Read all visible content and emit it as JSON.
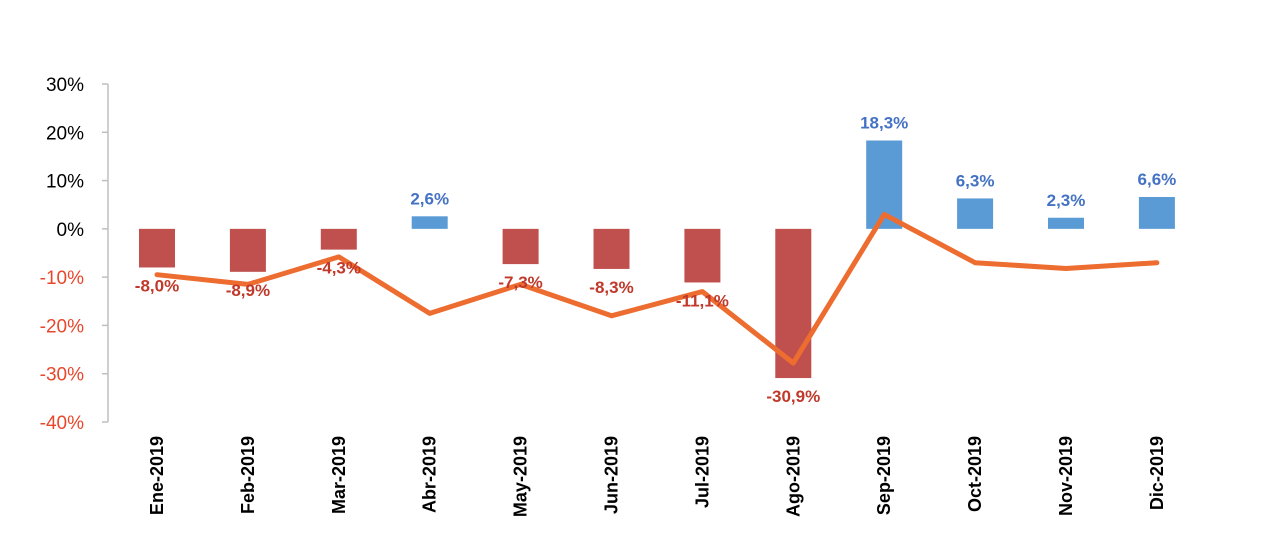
{
  "chart_data": {
    "type": "bar",
    "title": "",
    "xlabel": "",
    "ylabel": "",
    "ylim": [
      -40,
      30
    ],
    "yticks": [
      30,
      20,
      10,
      0,
      -10,
      -20,
      -30,
      -40
    ],
    "ytick_labels": [
      "30%",
      "20%",
      "10%",
      "0%",
      "-10%",
      "-20%",
      "-30%",
      "-40%"
    ],
    "categories": [
      "Ene-2019",
      "Feb-2019",
      "Mar-2019",
      "Abr-2019",
      "May-2019",
      "Jun-2019",
      "Jul-2019",
      "Ago-2019",
      "Sep-2019",
      "Oct-2019",
      "Nov-2019",
      "Dic-2019"
    ],
    "series": [
      {
        "name": "bars",
        "type": "bar",
        "values": [
          -8.0,
          -8.9,
          -4.3,
          2.6,
          -7.3,
          -8.3,
          -11.1,
          -30.9,
          18.3,
          6.3,
          2.3,
          6.6
        ],
        "labels": [
          "-8,0%",
          "-8,9%",
          "-4,3%",
          "2,6%",
          "-7,3%",
          "-8,3%",
          "-11,1%",
          "-30,9%",
          "18,3%",
          "6,3%",
          "2,3%",
          "6,6%"
        ]
      },
      {
        "name": "line",
        "type": "line",
        "values": [
          -9.5,
          -11.5,
          -5.8,
          -17.5,
          -11.5,
          -18.0,
          -13.0,
          -27.8,
          3.0,
          -7.0,
          -8.2,
          -7.0
        ]
      }
    ],
    "colors": {
      "positive_bar": "#5b9bd5",
      "negative_bar": "#c0504d",
      "positive_label": "#4472c4",
      "negative_label": "#c0392b",
      "line": "#ed6c2f",
      "positive_tick": "#000000",
      "negative_tick": "#e8472b",
      "axis": "#bfbfbf"
    }
  }
}
